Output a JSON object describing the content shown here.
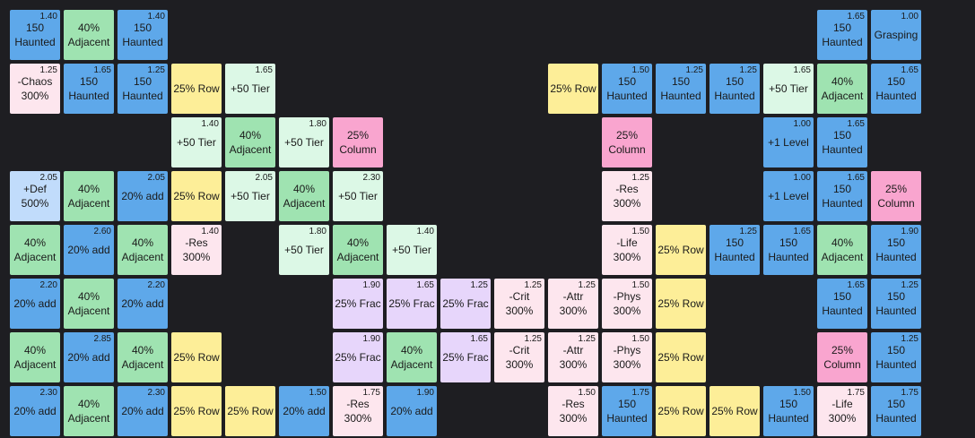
{
  "colors": {
    "background": "#1e1e22",
    "blue": "#5ea8ea",
    "green": "#9fe3b1",
    "yellow": "#fdee98",
    "mint": "#dcf8e6",
    "pink": "#fde6ee",
    "lavender": "#e7d6fb",
    "rose": "#f9a5cf",
    "sky": "#c1dcfb"
  },
  "tiles": [
    {
      "r": 0,
      "c": 0,
      "color": "blue",
      "mult": "1.40",
      "lines": [
        "150",
        "Haunted"
      ]
    },
    {
      "r": 0,
      "c": 1,
      "color": "green",
      "mult": "",
      "lines": [
        "40%",
        "Adjacent"
      ]
    },
    {
      "r": 0,
      "c": 2,
      "color": "blue",
      "mult": "1.40",
      "lines": [
        "150",
        "Haunted"
      ]
    },
    {
      "r": 0,
      "c": 15,
      "color": "blue",
      "mult": "1.65",
      "lines": [
        "150",
        "Haunted"
      ]
    },
    {
      "r": 0,
      "c": 16,
      "color": "blue",
      "mult": "1.00",
      "lines": [
        "Grasping"
      ]
    },
    {
      "r": 1,
      "c": 0,
      "color": "pink",
      "mult": "1.25",
      "lines": [
        "-Chaos",
        "300%"
      ]
    },
    {
      "r": 1,
      "c": 1,
      "color": "blue",
      "mult": "1.65",
      "lines": [
        "150",
        "Haunted"
      ]
    },
    {
      "r": 1,
      "c": 2,
      "color": "blue",
      "mult": "1.25",
      "lines": [
        "150",
        "Haunted"
      ]
    },
    {
      "r": 1,
      "c": 3,
      "color": "yellow",
      "mult": "",
      "lines": [
        "25% Row"
      ]
    },
    {
      "r": 1,
      "c": 4,
      "color": "mint",
      "mult": "1.65",
      "lines": [
        "+50 Tier"
      ]
    },
    {
      "r": 1,
      "c": 10,
      "color": "yellow",
      "mult": "",
      "lines": [
        "25% Row"
      ]
    },
    {
      "r": 1,
      "c": 11,
      "color": "blue",
      "mult": "1.50",
      "lines": [
        "150",
        "Haunted"
      ]
    },
    {
      "r": 1,
      "c": 12,
      "color": "blue",
      "mult": "1.25",
      "lines": [
        "150",
        "Haunted"
      ]
    },
    {
      "r": 1,
      "c": 13,
      "color": "blue",
      "mult": "1.25",
      "lines": [
        "150",
        "Haunted"
      ]
    },
    {
      "r": 1,
      "c": 14,
      "color": "mint",
      "mult": "1.65",
      "lines": [
        "+50 Tier"
      ]
    },
    {
      "r": 1,
      "c": 15,
      "color": "green",
      "mult": "",
      "lines": [
        "40%",
        "Adjacent"
      ]
    },
    {
      "r": 1,
      "c": 16,
      "color": "blue",
      "mult": "1.65",
      "lines": [
        "150",
        "Haunted"
      ]
    },
    {
      "r": 2,
      "c": 3,
      "color": "mint",
      "mult": "1.40",
      "lines": [
        "+50 Tier"
      ]
    },
    {
      "r": 2,
      "c": 4,
      "color": "green",
      "mult": "",
      "lines": [
        "40%",
        "Adjacent"
      ]
    },
    {
      "r": 2,
      "c": 5,
      "color": "mint",
      "mult": "1.80",
      "lines": [
        "+50 Tier"
      ]
    },
    {
      "r": 2,
      "c": 6,
      "color": "rose",
      "mult": "",
      "lines": [
        "25%",
        "Column"
      ]
    },
    {
      "r": 2,
      "c": 11,
      "color": "rose",
      "mult": "",
      "lines": [
        "25%",
        "Column"
      ]
    },
    {
      "r": 2,
      "c": 14,
      "color": "blue",
      "mult": "1.00",
      "lines": [
        "+1 Level"
      ]
    },
    {
      "r": 2,
      "c": 15,
      "color": "blue",
      "mult": "1.65",
      "lines": [
        "150",
        "Haunted"
      ]
    },
    {
      "r": 3,
      "c": 0,
      "color": "sky",
      "mult": "2.05",
      "lines": [
        "+Def",
        "500%"
      ]
    },
    {
      "r": 3,
      "c": 1,
      "color": "green",
      "mult": "",
      "lines": [
        "40%",
        "Adjacent"
      ]
    },
    {
      "r": 3,
      "c": 2,
      "color": "blue",
      "mult": "2.05",
      "lines": [
        "20% add"
      ]
    },
    {
      "r": 3,
      "c": 3,
      "color": "yellow",
      "mult": "",
      "lines": [
        "25% Row"
      ]
    },
    {
      "r": 3,
      "c": 4,
      "color": "mint",
      "mult": "2.05",
      "lines": [
        "+50 Tier"
      ]
    },
    {
      "r": 3,
      "c": 5,
      "color": "green",
      "mult": "",
      "lines": [
        "40%",
        "Adjacent"
      ]
    },
    {
      "r": 3,
      "c": 6,
      "color": "mint",
      "mult": "2.30",
      "lines": [
        "+50 Tier"
      ]
    },
    {
      "r": 3,
      "c": 11,
      "color": "pink",
      "mult": "1.25",
      "lines": [
        "-Res",
        "300%"
      ]
    },
    {
      "r": 3,
      "c": 14,
      "color": "blue",
      "mult": "1.00",
      "lines": [
        "+1 Level"
      ]
    },
    {
      "r": 3,
      "c": 15,
      "color": "blue",
      "mult": "1.65",
      "lines": [
        "150",
        "Haunted"
      ]
    },
    {
      "r": 3,
      "c": 16,
      "color": "rose",
      "mult": "",
      "lines": [
        "25%",
        "Column"
      ]
    },
    {
      "r": 4,
      "c": 0,
      "color": "green",
      "mult": "",
      "lines": [
        "40%",
        "Adjacent"
      ]
    },
    {
      "r": 4,
      "c": 1,
      "color": "blue",
      "mult": "2.60",
      "lines": [
        "20% add"
      ]
    },
    {
      "r": 4,
      "c": 2,
      "color": "green",
      "mult": "",
      "lines": [
        "40%",
        "Adjacent"
      ]
    },
    {
      "r": 4,
      "c": 3,
      "color": "pink",
      "mult": "1.40",
      "lines": [
        "-Res",
        "300%"
      ]
    },
    {
      "r": 4,
      "c": 5,
      "color": "mint",
      "mult": "1.80",
      "lines": [
        "+50 Tier"
      ]
    },
    {
      "r": 4,
      "c": 6,
      "color": "green",
      "mult": "",
      "lines": [
        "40%",
        "Adjacent"
      ]
    },
    {
      "r": 4,
      "c": 7,
      "color": "mint",
      "mult": "1.40",
      "lines": [
        "+50 Tier"
      ]
    },
    {
      "r": 4,
      "c": 11,
      "color": "pink",
      "mult": "1.50",
      "lines": [
        "-Life",
        "300%"
      ]
    },
    {
      "r": 4,
      "c": 12,
      "color": "yellow",
      "mult": "",
      "lines": [
        "25% Row"
      ]
    },
    {
      "r": 4,
      "c": 13,
      "color": "blue",
      "mult": "1.25",
      "lines": [
        "150",
        "Haunted"
      ]
    },
    {
      "r": 4,
      "c": 14,
      "color": "blue",
      "mult": "1.65",
      "lines": [
        "150",
        "Haunted"
      ]
    },
    {
      "r": 4,
      "c": 15,
      "color": "green",
      "mult": "",
      "lines": [
        "40%",
        "Adjacent"
      ]
    },
    {
      "r": 4,
      "c": 16,
      "color": "blue",
      "mult": "1.90",
      "lines": [
        "150",
        "Haunted"
      ]
    },
    {
      "r": 5,
      "c": 0,
      "color": "blue",
      "mult": "2.20",
      "lines": [
        "20% add"
      ]
    },
    {
      "r": 5,
      "c": 1,
      "color": "green",
      "mult": "",
      "lines": [
        "40%",
        "Adjacent"
      ]
    },
    {
      "r": 5,
      "c": 2,
      "color": "blue",
      "mult": "2.20",
      "lines": [
        "20% add"
      ]
    },
    {
      "r": 5,
      "c": 6,
      "color": "lavender",
      "mult": "1.90",
      "lines": [
        "25% Frac"
      ]
    },
    {
      "r": 5,
      "c": 7,
      "color": "lavender",
      "mult": "1.65",
      "lines": [
        "25% Frac"
      ]
    },
    {
      "r": 5,
      "c": 8,
      "color": "lavender",
      "mult": "1.25",
      "lines": [
        "25% Frac"
      ]
    },
    {
      "r": 5,
      "c": 9,
      "color": "pink",
      "mult": "1.25",
      "lines": [
        "-Crit",
        "300%"
      ]
    },
    {
      "r": 5,
      "c": 10,
      "color": "pink",
      "mult": "1.25",
      "lines": [
        "-Attr",
        "300%"
      ]
    },
    {
      "r": 5,
      "c": 11,
      "color": "pink",
      "mult": "1.50",
      "lines": [
        "-Phys",
        "300%"
      ]
    },
    {
      "r": 5,
      "c": 12,
      "color": "yellow",
      "mult": "",
      "lines": [
        "25% Row"
      ]
    },
    {
      "r": 5,
      "c": 15,
      "color": "blue",
      "mult": "1.65",
      "lines": [
        "150",
        "Haunted"
      ]
    },
    {
      "r": 5,
      "c": 16,
      "color": "blue",
      "mult": "1.25",
      "lines": [
        "150",
        "Haunted"
      ]
    },
    {
      "r": 6,
      "c": 0,
      "color": "green",
      "mult": "",
      "lines": [
        "40%",
        "Adjacent"
      ]
    },
    {
      "r": 6,
      "c": 1,
      "color": "blue",
      "mult": "2.85",
      "lines": [
        "20% add"
      ]
    },
    {
      "r": 6,
      "c": 2,
      "color": "green",
      "mult": "",
      "lines": [
        "40%",
        "Adjacent"
      ]
    },
    {
      "r": 6,
      "c": 3,
      "color": "yellow",
      "mult": "",
      "lines": [
        "25% Row"
      ]
    },
    {
      "r": 6,
      "c": 6,
      "color": "lavender",
      "mult": "1.90",
      "lines": [
        "25% Frac"
      ]
    },
    {
      "r": 6,
      "c": 7,
      "color": "green",
      "mult": "",
      "lines": [
        "40%",
        "Adjacent"
      ]
    },
    {
      "r": 6,
      "c": 8,
      "color": "lavender",
      "mult": "1.65",
      "lines": [
        "25% Frac"
      ]
    },
    {
      "r": 6,
      "c": 9,
      "color": "pink",
      "mult": "1.25",
      "lines": [
        "-Crit",
        "300%"
      ]
    },
    {
      "r": 6,
      "c": 10,
      "color": "pink",
      "mult": "1.25",
      "lines": [
        "-Attr",
        "300%"
      ]
    },
    {
      "r": 6,
      "c": 11,
      "color": "pink",
      "mult": "1.50",
      "lines": [
        "-Phys",
        "300%"
      ]
    },
    {
      "r": 6,
      "c": 12,
      "color": "yellow",
      "mult": "",
      "lines": [
        "25% Row"
      ]
    },
    {
      "r": 6,
      "c": 15,
      "color": "rose",
      "mult": "",
      "lines": [
        "25%",
        "Column"
      ]
    },
    {
      "r": 6,
      "c": 16,
      "color": "blue",
      "mult": "1.25",
      "lines": [
        "150",
        "Haunted"
      ]
    },
    {
      "r": 7,
      "c": 0,
      "color": "blue",
      "mult": "2.30",
      "lines": [
        "20% add"
      ]
    },
    {
      "r": 7,
      "c": 1,
      "color": "green",
      "mult": "",
      "lines": [
        "40%",
        "Adjacent"
      ]
    },
    {
      "r": 7,
      "c": 2,
      "color": "blue",
      "mult": "2.30",
      "lines": [
        "20% add"
      ]
    },
    {
      "r": 7,
      "c": 3,
      "color": "yellow",
      "mult": "",
      "lines": [
        "25% Row"
      ]
    },
    {
      "r": 7,
      "c": 4,
      "color": "yellow",
      "mult": "",
      "lines": [
        "25% Row"
      ]
    },
    {
      "r": 7,
      "c": 5,
      "color": "blue",
      "mult": "1.50",
      "lines": [
        "20% add"
      ]
    },
    {
      "r": 7,
      "c": 6,
      "color": "pink",
      "mult": "1.75",
      "lines": [
        "-Res",
        "300%"
      ]
    },
    {
      "r": 7,
      "c": 7,
      "color": "blue",
      "mult": "1.90",
      "lines": [
        "20% add"
      ]
    },
    {
      "r": 7,
      "c": 10,
      "color": "pink",
      "mult": "1.50",
      "lines": [
        "-Res",
        "300%"
      ]
    },
    {
      "r": 7,
      "c": 11,
      "color": "blue",
      "mult": "1.75",
      "lines": [
        "150",
        "Haunted"
      ]
    },
    {
      "r": 7,
      "c": 12,
      "color": "yellow",
      "mult": "",
      "lines": [
        "25% Row"
      ]
    },
    {
      "r": 7,
      "c": 13,
      "color": "yellow",
      "mult": "",
      "lines": [
        "25% Row"
      ]
    },
    {
      "r": 7,
      "c": 14,
      "color": "blue",
      "mult": "1.50",
      "lines": [
        "150",
        "Haunted"
      ]
    },
    {
      "r": 7,
      "c": 15,
      "color": "pink",
      "mult": "1.75",
      "lines": [
        "-Life",
        "300%"
      ]
    },
    {
      "r": 7,
      "c": 16,
      "color": "blue",
      "mult": "1.75",
      "lines": [
        "150",
        "Haunted"
      ]
    }
  ]
}
